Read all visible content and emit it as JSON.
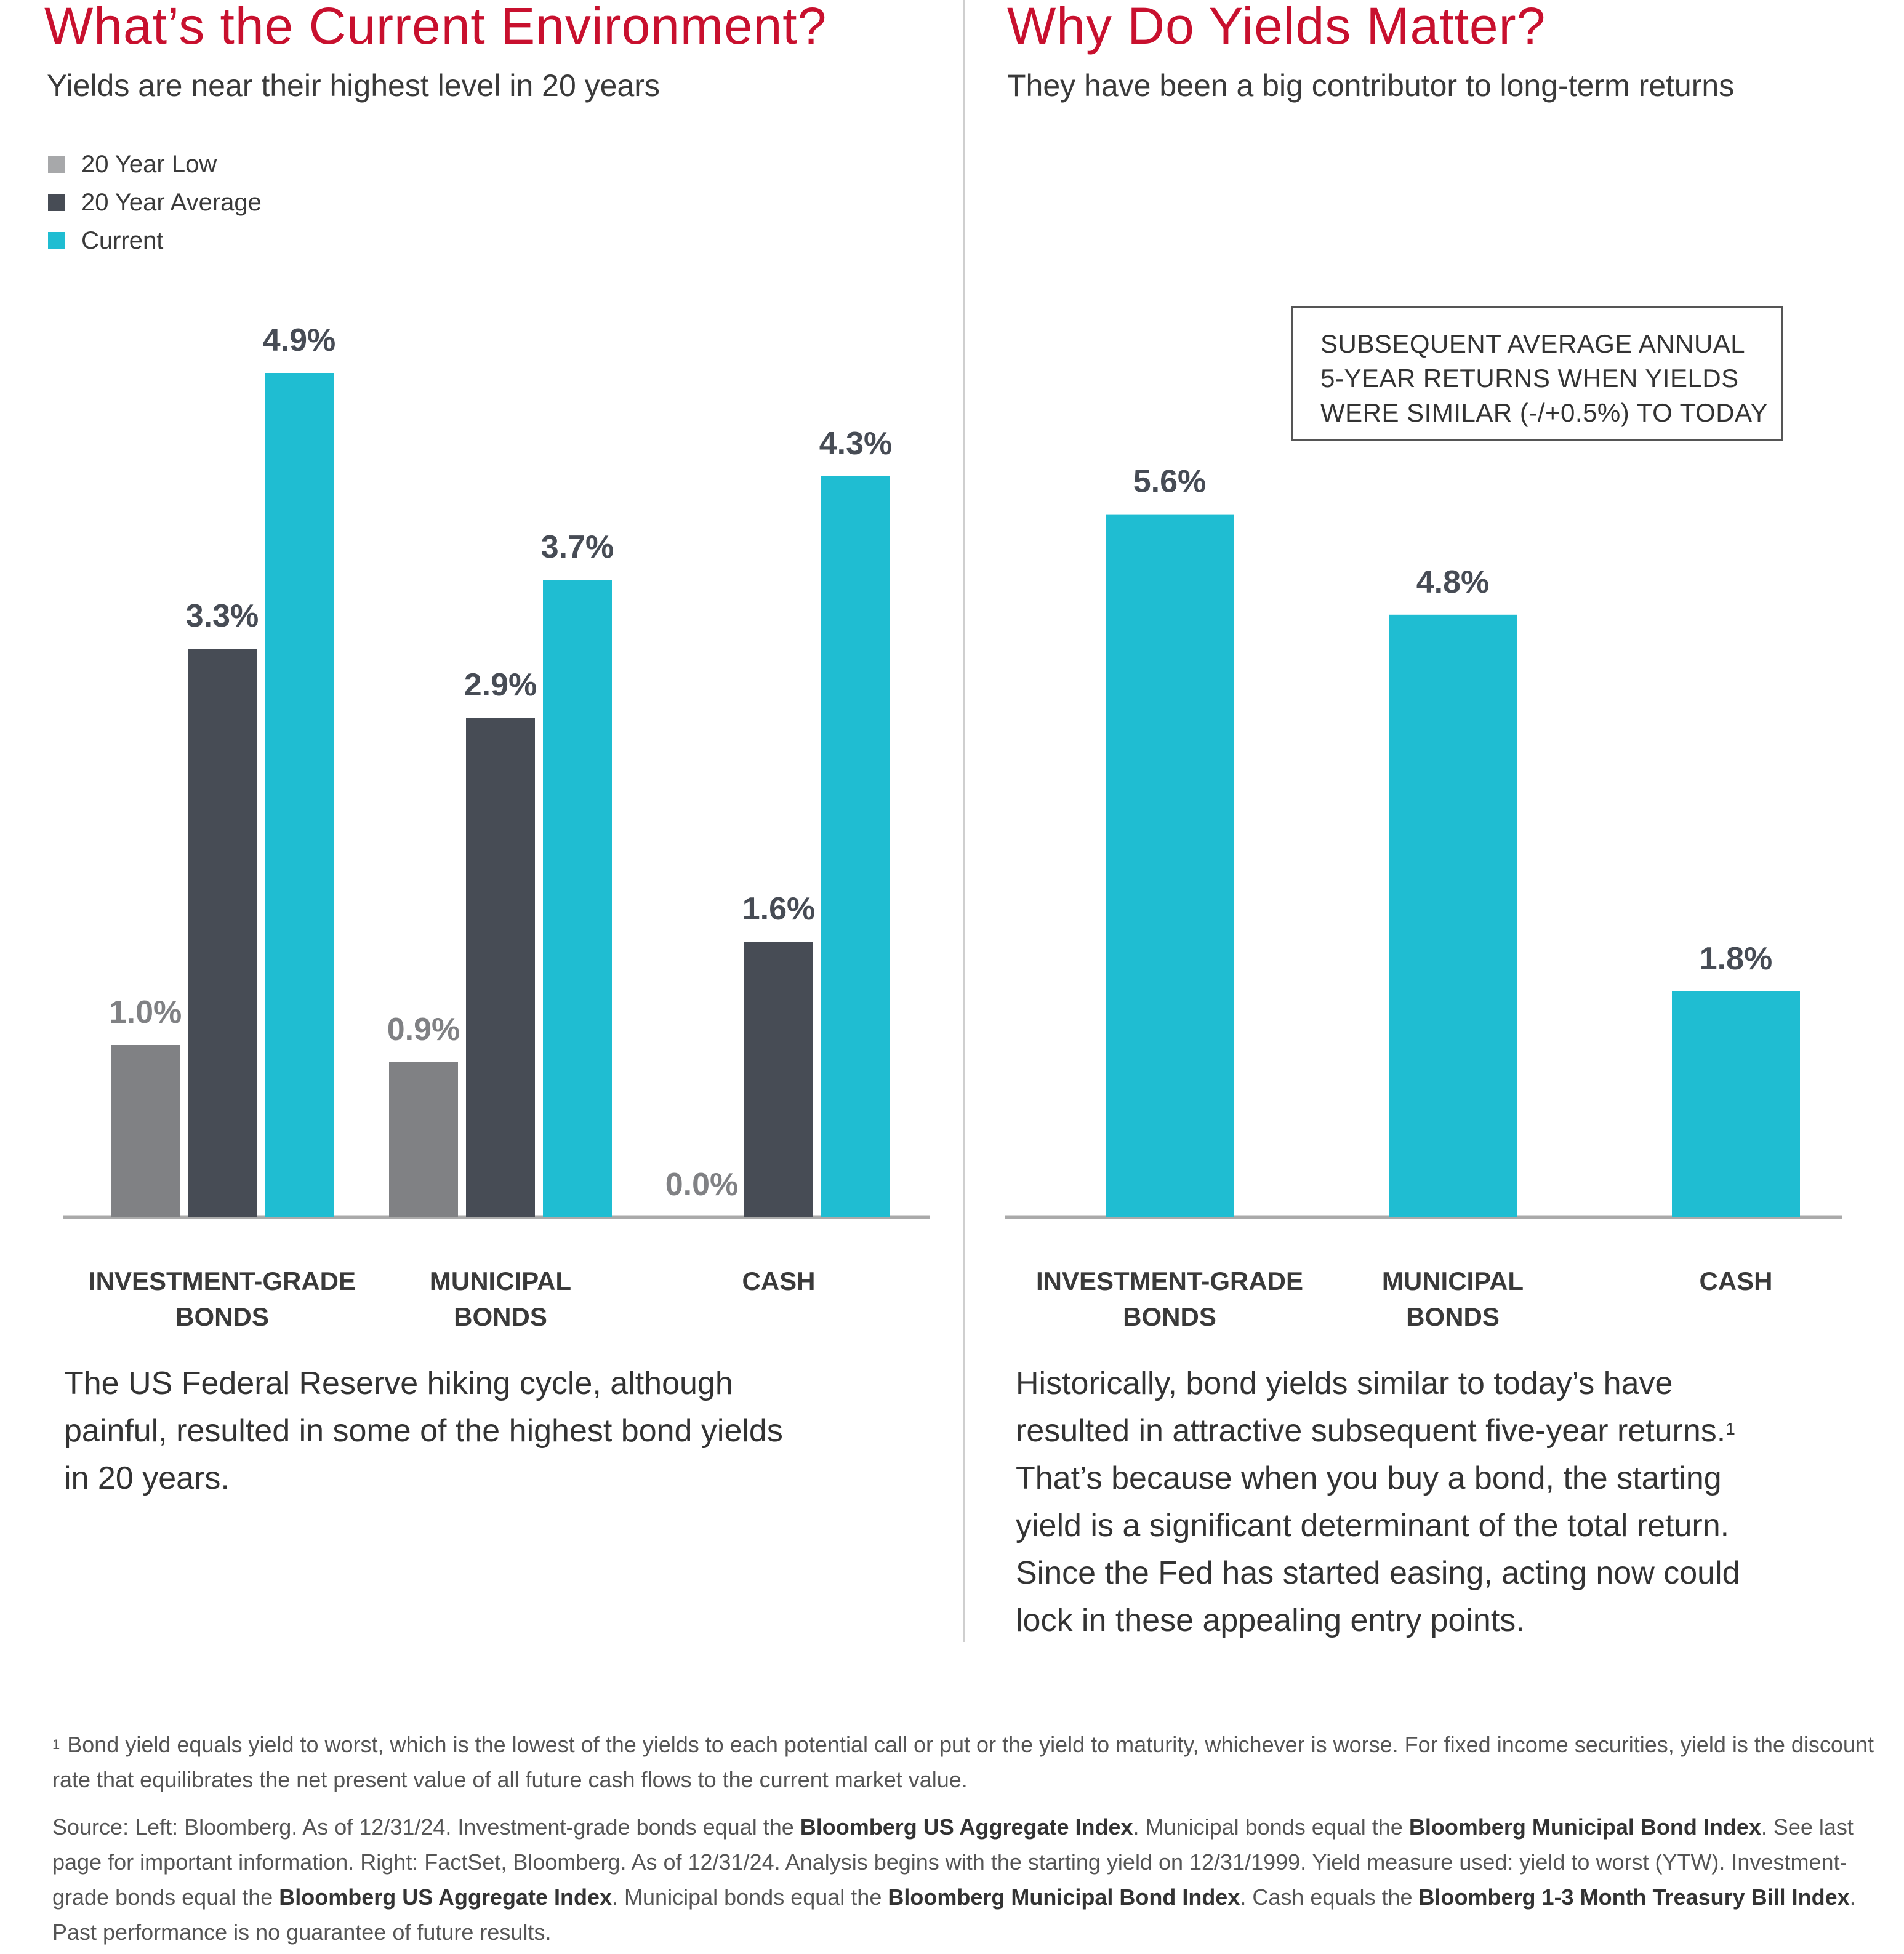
{
  "left": {
    "title": "What’s the Current Environment?",
    "subtitle": "Yields are near their highest level in 20 years",
    "legend": [
      {
        "label": "20 Year Low",
        "color": "#a7a8aa"
      },
      {
        "label": "20 Year Average",
        "color": "#474c55"
      },
      {
        "label": "Current",
        "color": "#1fbdd2"
      }
    ],
    "paragraph": [
      "The US Federal Reserve hiking cycle, although",
      "painful, resulted in some of the highest bond yields",
      "in 20 years."
    ]
  },
  "right": {
    "title": "Why Do Yields Matter?",
    "subtitle": "They have been a big contributor to long-term returns",
    "box_lines": [
      "SUBSEQUENT AVERAGE ANNUAL",
      "5-YEAR RETURNS WHEN YIELDS",
      "WERE SIMILAR (-/+0.5%) TO TODAY"
    ],
    "paragraph": [
      "Historically, bond yields similar to today’s have",
      "resulted in attractive subsequent five-year returns.",
      "That’s because when you buy a bond, the starting",
      "yield is a significant determinant of the total return.",
      "Since the Fed has started easing, acting now could",
      "lock in these appealing entry points."
    ],
    "paragraph_sup": "1"
  },
  "chart_data": [
    {
      "type": "bar",
      "categories": [
        [
          "INVESTMENT-GRADE",
          "BONDS"
        ],
        [
          "MUNICIPAL",
          "BONDS"
        ],
        [
          "CASH"
        ]
      ],
      "series": [
        {
          "name": "20 Year Low",
          "values": [
            1.0,
            0.9,
            0.0
          ],
          "labels": [
            "1.0%",
            "0.9%",
            "0.0%"
          ],
          "color": "#808184",
          "label_color": "#808184"
        },
        {
          "name": "20 Year Average",
          "values": [
            3.3,
            2.9,
            1.6
          ],
          "labels": [
            "3.3%",
            "2.9%",
            "1.6%"
          ],
          "color": "#474c55",
          "label_color": "#474c55"
        },
        {
          "name": "Current",
          "values": [
            4.9,
            3.7,
            4.3
          ],
          "labels": [
            "4.9%",
            "3.7%",
            "4.3%"
          ],
          "color": "#1fbdd2",
          "label_color": "#474c55"
        }
      ],
      "ylim": [
        0,
        5.0
      ]
    },
    {
      "type": "bar",
      "categories": [
        [
          "INVESTMENT-GRADE",
          "BONDS"
        ],
        [
          "MUNICIPAL",
          "BONDS"
        ],
        [
          "CASH"
        ]
      ],
      "series": [
        {
          "values": [
            5.6,
            4.8,
            1.8
          ],
          "labels": [
            "5.6%",
            "4.8%",
            "1.8%"
          ],
          "color": "#1fbdd2",
          "label_color": "#474c55"
        }
      ],
      "ylim": [
        0,
        5.6
      ]
    }
  ],
  "footnotes": {
    "note1_sup": "1",
    "note1": "Bond yield equals yield to worst, which is the lowest of the yields to each potential call or put or the yield to maturity, whichever is worse. For fixed income securities, yield is the discount rate that equilibrates the net present value of all future cash flows to the current market value.",
    "source_parts": [
      {
        "text": "Source: Left: Bloomberg. As of 12/31/24. Investment-grade bonds equal the ",
        "bold": false
      },
      {
        "text": "Bloomberg US Aggregate Index",
        "bold": true
      },
      {
        "text": ". Municipal bonds equal the ",
        "bold": false
      },
      {
        "text": "Bloomberg Municipal Bond Index",
        "bold": true
      },
      {
        "text": ". See last page for important information. Right: FactSet, Bloomberg. As of 12/31/24. Analysis begins with the starting yield on 12/31/1999. Yield measure used: yield to worst (YTW). Investment-grade bonds equal the ",
        "bold": false
      },
      {
        "text": "Bloomberg US Aggregate Index",
        "bold": true
      },
      {
        "text": ". Municipal bonds equal the ",
        "bold": false
      },
      {
        "text": "Bloomberg Municipal Bond Index",
        "bold": true
      },
      {
        "text": ". Cash equals the ",
        "bold": false
      },
      {
        "text": "Bloomberg 1-3 Month Treasury Bill Index",
        "bold": true
      },
      {
        "text": ". Past performance is no guarantee of future results.",
        "bold": false
      }
    ]
  }
}
